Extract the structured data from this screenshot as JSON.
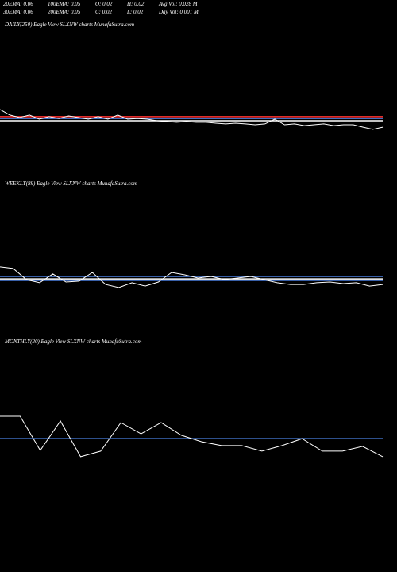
{
  "header": {
    "rows": [
      [
        "20EMA: 0.06",
        "100EMA: 0.05",
        "O: 0.02",
        "H: 0.02",
        "Avg Vol: 0.028 M"
      ],
      [
        "30EMA: 0.06",
        "200EMA: 0.05",
        "C: 0.02",
        "L: 0.02",
        "Day Vol: 0.001 M"
      ]
    ]
  },
  "chart_data": [
    {
      "type": "line",
      "title": "DAILY(250) Eagle  View  SLXNW charts MunafaSutra.com",
      "ylim": [
        0,
        100
      ],
      "series": [
        {
          "color": "#ff3333",
          "values": [
            40.6,
            40.6
          ]
        },
        {
          "color": "#4a7fe0",
          "values": [
            39.4,
            39.4
          ]
        },
        {
          "color": "#ffffff",
          "values": [
            37.8,
            37.8
          ]
        },
        {
          "color": "#ffffff",
          "values": [
            45.6,
            41.7,
            40.0,
            41.7,
            38.9,
            40.6,
            39.4,
            41.1,
            40.0,
            38.9,
            40.6,
            38.9,
            41.7,
            38.9,
            39.4,
            38.9,
            37.8,
            37.2,
            36.7,
            37.2,
            36.7,
            36.7,
            36.1,
            35.6,
            36.1,
            35.6,
            35.0,
            35.6,
            38.9,
            35.0,
            35.6,
            34.4,
            35.0,
            35.6,
            34.4,
            35.0,
            35.0,
            33.3,
            31.7,
            33.3
          ]
        }
      ]
    },
    {
      "type": "line",
      "title": "WEEKLY(89) Eagle  View  SLXNW charts MunafaSutra.com",
      "ylim": [
        0,
        100
      ],
      "series": [
        {
          "color": "#4a7fe0",
          "values": [
            40.0,
            40.0
          ]
        },
        {
          "color": "#ffffff",
          "values": [
            38.3,
            38.3
          ]
        },
        {
          "color": "#4a7fe0",
          "values": [
            37.2,
            37.2
          ]
        },
        {
          "color": "#ffffff",
          "values": [
            46.7,
            45.6,
            37.8,
            35.6,
            41.7,
            36.1,
            36.7,
            42.8,
            34.4,
            32.2,
            35.6,
            33.3,
            36.1,
            42.8,
            41.1,
            38.9,
            40.0,
            37.8,
            38.9,
            40.0,
            37.8,
            35.6,
            34.4,
            34.4,
            35.6,
            36.1,
            35.0,
            35.6,
            33.3,
            34.4
          ]
        }
      ]
    },
    {
      "type": "line",
      "title": "MONTHLY(20) Eagle  View  SLXNW charts MunafaSutra.com",
      "ylim": [
        0,
        100
      ],
      "series": [
        {
          "color": "#4a7fe0",
          "values": [
            56.9,
            56.9
          ]
        },
        {
          "color": "#ffffff",
          "values": [
            67.7,
            67.7,
            51.2,
            65.4,
            48.1,
            50.8,
            64.6,
            59.2,
            64.6,
            58.5,
            55.4,
            53.5,
            53.5,
            50.8,
            53.5,
            56.9,
            50.8,
            50.8,
            53.1,
            48.1
          ]
        }
      ]
    }
  ]
}
